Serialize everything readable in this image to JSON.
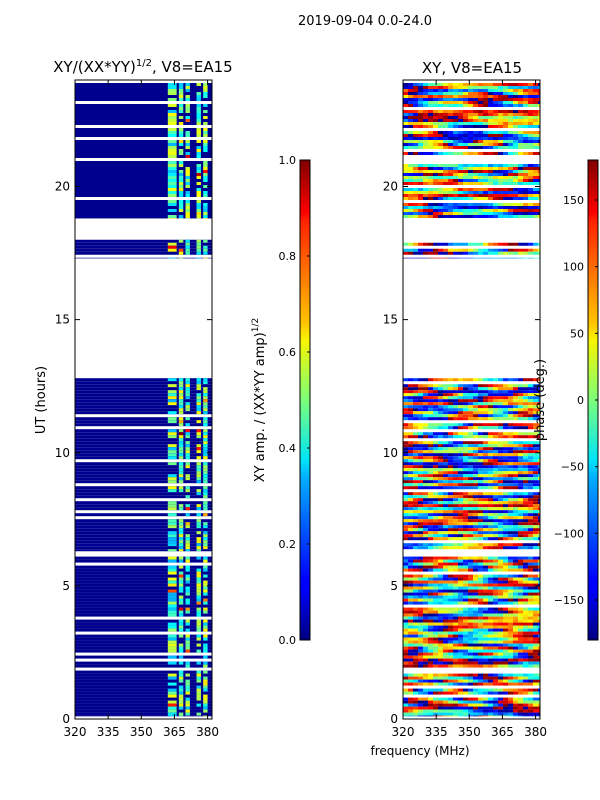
{
  "suptitle": "2019-09-04 0.0-24.0",
  "chart_data": [
    {
      "type": "heatmap",
      "title_prefix": "XY/(XX*YY)",
      "title_exp": "1/2",
      "title_suffix": ", V8=EA15",
      "xlabel": "",
      "ylabel": "UT (hours)",
      "xlim": [
        320,
        382
      ],
      "ylim": [
        0,
        24
      ],
      "xticks": [
        320,
        335,
        350,
        365,
        380
      ],
      "yticks": [
        0,
        5,
        10,
        15,
        20
      ],
      "colorbar": {
        "label": "XY amp. / (XX*YY amp)",
        "label_exp": "1/2",
        "range": [
          0.0,
          1.0
        ],
        "ticks": [
          0.0,
          0.2,
          0.4,
          0.6,
          0.8,
          1.0
        ],
        "tick_labels": [
          "0.0",
          "0.2",
          "0.4",
          "0.6",
          "0.8",
          "1.0"
        ]
      },
      "data_bands_hours": [
        [
          0.1,
          6.1
        ],
        [
          6.3,
          12.8
        ],
        [
          17.3,
          18.0
        ],
        [
          18.8,
          24.0
        ]
      ],
      "bright_channels_mhz": [
        [
          362,
          366
        ],
        [
          367,
          369
        ],
        [
          370,
          372
        ],
        [
          375,
          377
        ],
        [
          378,
          380
        ]
      ]
    },
    {
      "type": "heatmap",
      "title_prefix": "XY, V8=EA15",
      "xlabel": "frequency (MHz)",
      "ylabel": "",
      "xlim": [
        320,
        382
      ],
      "ylim": [
        0,
        24
      ],
      "xticks": [
        320,
        335,
        350,
        365,
        380
      ],
      "yticks": [
        0,
        5,
        10,
        15,
        20
      ],
      "colorbar": {
        "label": "phase (deg.)",
        "range": [
          -180,
          180
        ],
        "ticks": [
          -150,
          -100,
          -50,
          0,
          50,
          100,
          150
        ],
        "tick_labels": [
          "−150",
          "−100",
          "−50",
          "0",
          "50",
          "100",
          "150"
        ]
      },
      "data_bands_hours": [
        [
          0.1,
          6.1
        ],
        [
          6.3,
          12.8
        ],
        [
          17.3,
          18.0
        ],
        [
          18.8,
          24.0
        ]
      ]
    }
  ]
}
